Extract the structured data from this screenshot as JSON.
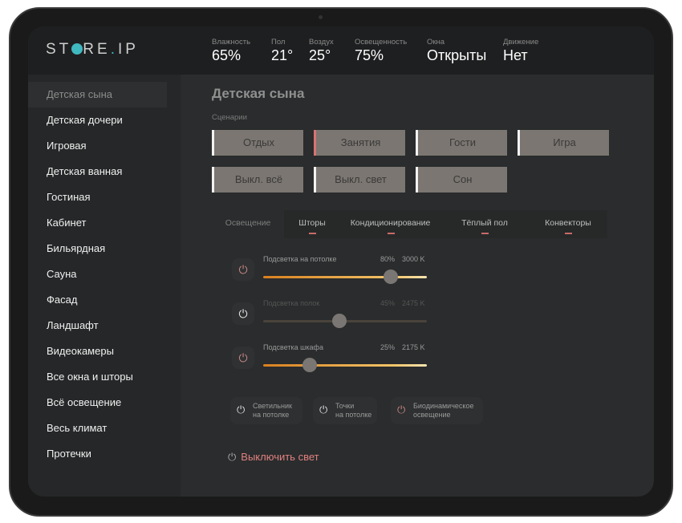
{
  "logo": "STORE.IP",
  "header": {
    "stats": [
      {
        "label": "Влажность",
        "value": "65%"
      },
      {
        "label": "Пол",
        "value": "21°"
      },
      {
        "label": "Воздух",
        "value": "25°"
      },
      {
        "label": "Освещенность",
        "value": "75%"
      },
      {
        "label": "Окна",
        "value": "Открыты"
      },
      {
        "label": "Движение",
        "value": "Нет"
      }
    ]
  },
  "sidebar": {
    "items": [
      "Детская сына",
      "Детская дочери",
      "Игровая",
      "Детская ванная",
      "Гостиная",
      "Кабинет",
      "Бильярдная",
      "Сауна",
      "Фасад",
      "Ландшафт",
      "Видеокамеры",
      "Все окна и шторы",
      "Всё освещение",
      "Весь климат",
      "Протечки"
    ],
    "active": "Детская сына"
  },
  "main": {
    "title": "Детская сына",
    "scenarios_label": "Сценарии",
    "scenarios": [
      "Отдых",
      "Занятия",
      "Гости",
      "Игра",
      "Выкл. всё",
      "Выкл. свет",
      "Сон"
    ],
    "tabs": [
      "Освещение",
      "Шторы",
      "Кондиционирование",
      "Тёплый пол",
      "Конвекторы"
    ],
    "active_tab": "Освещение",
    "sliders": [
      {
        "label": "Подсветка на потолке",
        "percent": "80%",
        "temp": "3000 K",
        "value": 80,
        "enabled": true
      },
      {
        "label": "Подсветка полок",
        "percent": "45%",
        "temp": "2475 K",
        "value": 45,
        "enabled": false
      },
      {
        "label": "Подсветка шкафа",
        "percent": "25%",
        "temp": "2175 K",
        "value": 25,
        "enabled": true
      }
    ],
    "chips": [
      [
        "Светильник",
        "на потолке"
      ],
      [
        "Точки",
        "на потолке"
      ],
      [
        "Биодинамическое",
        "освещение"
      ]
    ],
    "off_button": "Выключить свет"
  },
  "colors": {
    "accent": "#3fb8c0",
    "slider": "#e0902a",
    "danger": "#e08080"
  }
}
